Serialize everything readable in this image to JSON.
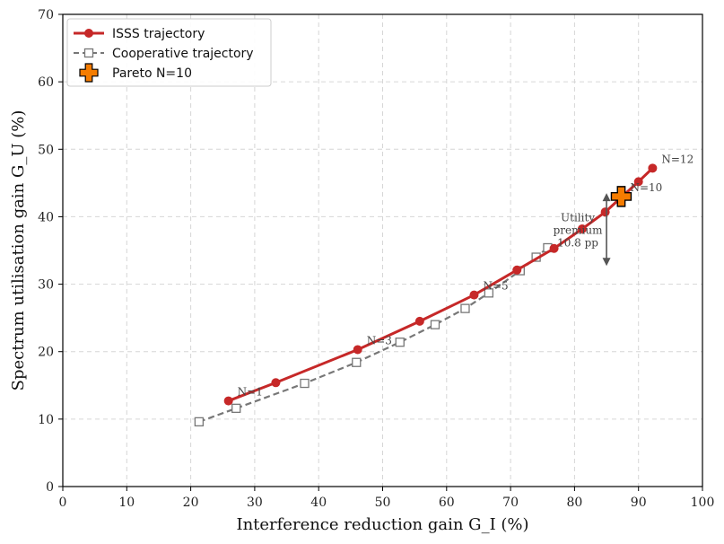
{
  "chart_data": {
    "type": "line",
    "title": "",
    "xlabel": "Interference reduction gain G_I (%)",
    "ylabel": "Spectrum utilisation gain G_U (%)",
    "xlim": [
      0,
      100
    ],
    "ylim": [
      0,
      70
    ],
    "xticks": [
      0,
      10,
      20,
      30,
      40,
      50,
      60,
      70,
      80,
      90,
      100
    ],
    "yticks": [
      0,
      10,
      20,
      30,
      40,
      50,
      60,
      70
    ],
    "grid": true,
    "legend_position": "top-left",
    "series": [
      {
        "name": "ISSS trajectory",
        "color": "#c62828",
        "marker": "circle",
        "line": "solid",
        "x": [
          25.9,
          33.3,
          46.1,
          55.8,
          64.3,
          71.0,
          76.8,
          81.2,
          84.8,
          90.0,
          92.2
        ],
        "y": [
          12.7,
          15.4,
          20.3,
          24.5,
          28.4,
          32.1,
          35.3,
          38.2,
          40.7,
          45.2,
          47.2
        ]
      },
      {
        "name": "Cooperative trajectory",
        "color": "#777777",
        "marker": "square-open",
        "line": "dashed",
        "x": [
          21.3,
          27.1,
          37.8,
          45.9,
          52.7,
          58.2,
          62.9,
          66.6,
          71.5,
          74.0,
          75.8
        ],
        "y": [
          9.6,
          11.6,
          15.3,
          18.4,
          21.4,
          24.0,
          26.4,
          28.7,
          32.0,
          34.0,
          35.4
        ]
      }
    ],
    "pareto": {
      "name": "Pareto N=10",
      "x": 87.3,
      "y": 43.0,
      "color": "#f57c00"
    },
    "annotations": [
      {
        "text": "N=1",
        "x": 25.9,
        "y": 12.7
      },
      {
        "text": "N=3",
        "x": 46.1,
        "y": 20.3
      },
      {
        "text": "N=5",
        "x": 64.3,
        "y": 28.4
      },
      {
        "text": "N=10",
        "x": 87.3,
        "y": 43.0
      },
      {
        "text": "N=12",
        "x": 92.2,
        "y": 47.2
      }
    ],
    "premium": {
      "lines": [
        "Utility",
        "premium",
        "10.8 pp"
      ],
      "x": 85.0,
      "y_top": 43.5,
      "y_bottom": 32.7
    }
  }
}
